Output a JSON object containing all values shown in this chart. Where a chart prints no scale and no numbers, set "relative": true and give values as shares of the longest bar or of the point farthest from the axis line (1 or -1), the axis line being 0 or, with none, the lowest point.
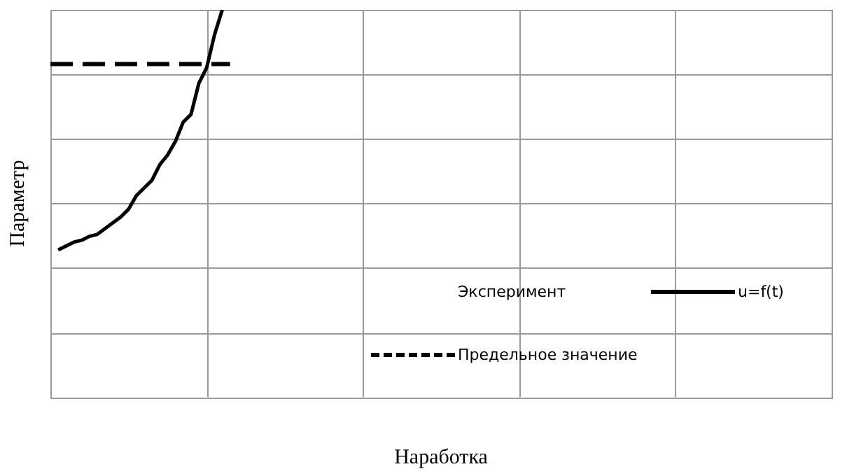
{
  "chart_data": {
    "type": "line",
    "relative": true,
    "xlabel": "Наработка",
    "ylabel": "Параметр",
    "categories": [
      null,
      null,
      null,
      null,
      null,
      null,
      null,
      null,
      null,
      null,
      null,
      null,
      null,
      null,
      null,
      null,
      null,
      null,
      null,
      null,
      null,
      null,
      null,
      null,
      null,
      null,
      null,
      null,
      null,
      null,
      null,
      null,
      null,
      null,
      null,
      null,
      null,
      null,
      null,
      null,
      null,
      null,
      null,
      null,
      null,
      null,
      null,
      null,
      null,
      null,
      null,
      null,
      null,
      null,
      null,
      null,
      null,
      null,
      null,
      null,
      null,
      null,
      null,
      null,
      null,
      null,
      null,
      null,
      null,
      null,
      null,
      null,
      null,
      null,
      null,
      null,
      null,
      null,
      null,
      null,
      null,
      null,
      null,
      null,
      null,
      null,
      null,
      null,
      null,
      null,
      null,
      null,
      null,
      null,
      null,
      null,
      null,
      null,
      null,
      null,
      null
    ],
    "grid": true,
    "legend": "bottom right",
    "marker": "none",
    "annotations": [
      "Эксперимент"
    ],
    "series": [
      {
        "name": "u=f(t)",
        "line_style": "solid",
        "color": "#000000",
        "values": [
          null,
          0.38,
          0.39,
          0.4,
          0.405,
          0.415,
          0.42,
          0.435,
          0.45,
          0.465,
          0.485,
          0.52,
          0.54,
          0.56,
          0.6,
          0.625,
          0.66,
          0.71,
          0.73,
          0.81,
          0.85,
          0.935,
          1.0,
          null,
          null,
          null,
          null,
          null,
          null,
          null,
          null,
          null,
          null,
          null,
          null,
          null,
          null,
          null,
          null,
          null,
          null,
          null,
          null,
          null,
          null,
          null,
          null,
          null,
          null,
          null,
          null,
          null,
          null,
          null,
          null,
          null,
          null,
          null,
          null,
          null,
          null,
          null,
          null,
          null,
          null,
          null,
          null,
          null,
          null,
          null,
          null,
          null,
          null,
          null,
          null,
          null,
          null,
          null,
          null,
          null,
          null,
          null,
          null,
          null,
          null,
          null,
          null,
          null,
          null,
          null,
          null,
          null,
          null,
          null,
          null,
          null,
          null,
          null,
          null,
          null,
          null
        ]
      },
      {
        "name": "Предельное значение",
        "line_style": "dashed",
        "color": "#000000",
        "values": [
          0.86,
          0.86,
          0.86,
          0.86,
          0.86,
          0.86,
          0.86,
          0.86,
          0.86,
          0.86,
          0.86,
          0.86,
          0.86,
          0.86,
          0.86,
          0.86,
          0.86,
          0.86,
          0.86,
          0.86,
          0.86,
          0.86,
          0.86,
          0.86,
          null,
          null,
          null,
          null,
          null,
          null,
          null,
          null,
          null,
          null,
          null,
          null,
          null,
          null,
          null,
          null,
          null,
          null,
          null,
          null,
          null,
          null,
          null,
          null,
          null,
          null,
          null,
          null,
          null,
          null,
          null,
          null,
          null,
          null,
          null,
          null,
          null,
          null,
          null,
          null,
          null,
          null,
          null,
          null,
          null,
          null,
          null,
          null,
          null,
          null,
          null,
          null,
          null,
          null,
          null,
          null,
          null,
          null,
          null,
          null,
          null,
          null,
          null,
          null,
          null,
          null,
          null,
          null,
          null,
          null,
          null,
          null,
          null,
          null,
          null,
          null,
          null
        ]
      }
    ]
  }
}
